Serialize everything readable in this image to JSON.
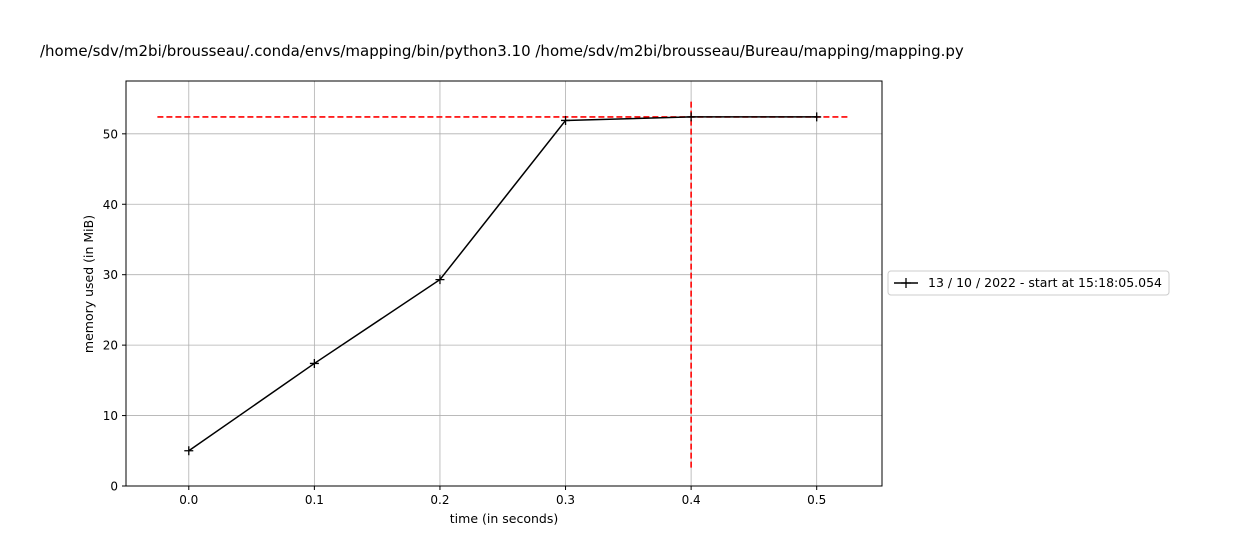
{
  "chart_data": {
    "type": "line",
    "title": "/home/sdv/m2bi/brousseau/.conda/envs/mapping/bin/python3.10 /home/sdv/m2bi/brousseau/Bureau/mapping/mapping.py",
    "xlabel": "time (in seconds)",
    "ylabel": "memory used (in MiB)",
    "xlim": [
      -0.05,
      0.552
    ],
    "ylim": [
      0,
      57.5
    ],
    "xticks": [
      "0.0",
      "0.1",
      "0.2",
      "0.3",
      "0.4",
      "0.5"
    ],
    "yticks": [
      "0",
      "10",
      "20",
      "30",
      "40",
      "50"
    ],
    "grid": true,
    "legend_position": "right, outside plot area",
    "series": [
      {
        "name": "13 / 10 / 2022 - start at 15:18:05.054",
        "color": "#000000",
        "marker": "+",
        "x": [
          0.0,
          0.1,
          0.2,
          0.3,
          0.4,
          0.5
        ],
        "y": [
          5.0,
          17.4,
          29.3,
          51.9,
          52.4,
          52.4
        ]
      }
    ],
    "reference_lines": [
      {
        "orientation": "horizontal",
        "y": 52.4,
        "x_range": [
          -0.025,
          0.525
        ],
        "style": "dashed",
        "color": "#ff0000"
      },
      {
        "orientation": "vertical",
        "x": 0.4,
        "y_range": [
          2.6,
          54.8
        ],
        "style": "dashed",
        "color": "#ff0000"
      }
    ]
  }
}
